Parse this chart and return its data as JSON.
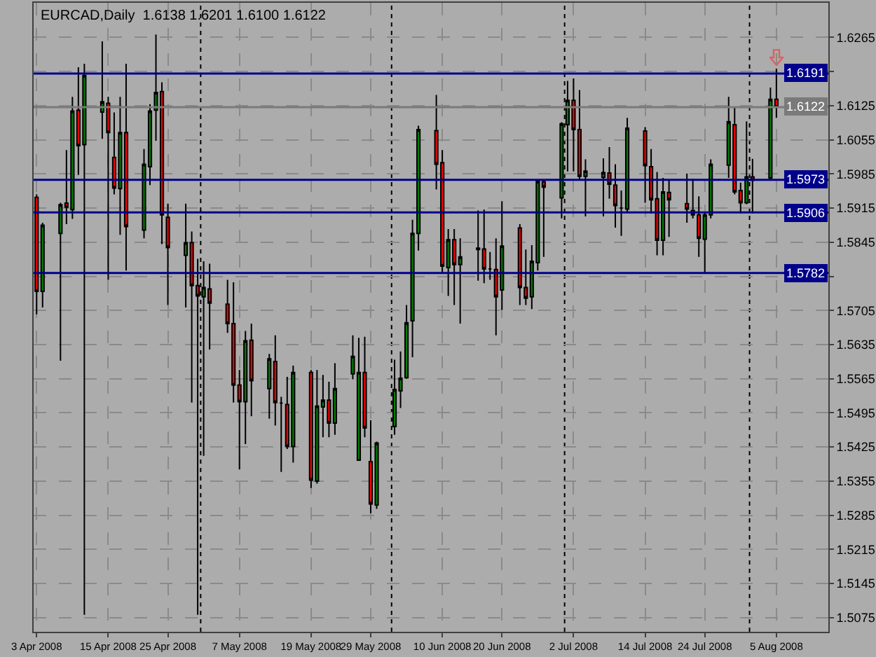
{
  "chart_data": {
    "type": "candlestick",
    "title": "EURCAD,Daily  1.6138 1.6201 1.6100 1.6122",
    "x": [
      "2008-04-03",
      "2008-04-04",
      "2008-04-07",
      "2008-04-08",
      "2008-04-09",
      "2008-04-10",
      "2008-04-11",
      "2008-04-14",
      "2008-04-15",
      "2008-04-16",
      "2008-04-17",
      "2008-04-18",
      "2008-04-21",
      "2008-04-22",
      "2008-04-23",
      "2008-04-24",
      "2008-04-25",
      "2008-04-28",
      "2008-04-29",
      "2008-04-30",
      "2008-05-01",
      "2008-05-02",
      "2008-05-05",
      "2008-05-06",
      "2008-05-07",
      "2008-05-08",
      "2008-05-09",
      "2008-05-12",
      "2008-05-13",
      "2008-05-14",
      "2008-05-15",
      "2008-05-16",
      "2008-05-19",
      "2008-05-20",
      "2008-05-21",
      "2008-05-22",
      "2008-05-23",
      "2008-05-26",
      "2008-05-27",
      "2008-05-28",
      "2008-05-29",
      "2008-05-30",
      "2008-06-02",
      "2008-06-03",
      "2008-06-04",
      "2008-06-05",
      "2008-06-06",
      "2008-06-09",
      "2008-06-10",
      "2008-06-11",
      "2008-06-12",
      "2008-06-13",
      "2008-06-16",
      "2008-06-17",
      "2008-06-18",
      "2008-06-19",
      "2008-06-20",
      "2008-06-23",
      "2008-06-24",
      "2008-06-25",
      "2008-06-26",
      "2008-06-27",
      "2008-06-30",
      "2008-07-01",
      "2008-07-02",
      "2008-07-03",
      "2008-07-04",
      "2008-07-07",
      "2008-07-08",
      "2008-07-09",
      "2008-07-10",
      "2008-07-11",
      "2008-07-14",
      "2008-07-15",
      "2008-07-16",
      "2008-07-17",
      "2008-07-18",
      "2008-07-21",
      "2008-07-22",
      "2008-07-23",
      "2008-07-24",
      "2008-07-25",
      "2008-07-28",
      "2008-07-29",
      "2008-07-30",
      "2008-07-31",
      "2008-08-01",
      "2008-08-04",
      "2008-08-05"
    ],
    "ohlc": [
      [
        1.5937,
        1.5943,
        1.5697,
        1.5744
      ],
      [
        1.5744,
        1.5885,
        1.5711,
        1.588
      ],
      [
        1.5863,
        1.5926,
        1.5602,
        1.5922
      ],
      [
        1.5925,
        1.6034,
        1.5882,
        1.5917
      ],
      [
        1.5912,
        1.6143,
        1.5893,
        1.6114
      ],
      [
        1.6116,
        1.6204,
        1.5983,
        1.6043
      ],
      [
        1.6045,
        1.6211,
        1.5081,
        1.6187
      ],
      [
        1.6112,
        1.6257,
        1.6057,
        1.6133
      ],
      [
        1.613,
        1.6143,
        1.5768,
        1.607
      ],
      [
        1.6019,
        1.6111,
        1.5943,
        1.5956
      ],
      [
        1.5955,
        1.6143,
        1.586,
        1.607
      ],
      [
        1.607,
        1.6211,
        1.5787,
        1.5877
      ],
      [
        1.587,
        1.6036,
        1.5853,
        1.6005
      ],
      [
        1.6,
        1.6128,
        1.5962,
        1.6114
      ],
      [
        1.6116,
        1.6271,
        1.6053,
        1.6152
      ],
      [
        1.6154,
        1.6173,
        1.5841,
        1.5901
      ],
      [
        1.5896,
        1.5924,
        1.5716,
        1.5834
      ],
      [
        1.5818,
        1.5924,
        1.5711,
        1.5844
      ],
      [
        1.5844,
        1.5867,
        1.5516,
        1.5756
      ],
      [
        1.5756,
        1.5811,
        1.5081,
        1.5735
      ],
      [
        1.5733,
        1.5806,
        1.5407,
        1.5752
      ],
      [
        1.5749,
        1.5801,
        1.5625,
        1.572
      ],
      [
        1.5718,
        1.5768,
        1.5659,
        1.5678
      ],
      [
        1.5678,
        1.5763,
        1.5516,
        1.5552
      ],
      [
        1.5552,
        1.5583,
        1.5379,
        1.5518
      ],
      [
        1.5518,
        1.5663,
        1.5431,
        1.5643
      ],
      [
        1.5644,
        1.5678,
        1.5488,
        1.5561
      ],
      [
        1.5545,
        1.5616,
        1.5483,
        1.5606
      ],
      [
        1.56,
        1.5654,
        1.5469,
        1.5516
      ],
      [
        1.5515,
        1.5528,
        1.5374,
        1.5515
      ],
      [
        1.5512,
        1.5569,
        1.5421,
        1.5426
      ],
      [
        1.5426,
        1.5592,
        1.5393,
        1.5578
      ],
      [
        1.5578,
        1.5583,
        1.5341,
        1.5357
      ],
      [
        1.5355,
        1.5583,
        1.535,
        1.5509
      ],
      [
        1.5507,
        1.5573,
        1.5445,
        1.5521
      ],
      [
        1.5521,
        1.5559,
        1.5445,
        1.5474
      ],
      [
        1.5474,
        1.5597,
        1.545,
        1.5545
      ],
      [
        1.5575,
        1.5654,
        1.5564,
        1.5611
      ],
      [
        1.5398,
        1.5649,
        1.5398,
        1.5578
      ],
      [
        1.5578,
        1.5651,
        1.5445,
        1.5464
      ],
      [
        1.5395,
        1.548,
        1.5289,
        1.5308
      ],
      [
        1.5306,
        1.5436,
        1.5298,
        1.5433
      ],
      [
        1.5467,
        1.5604,
        1.545,
        1.5543
      ],
      [
        1.554,
        1.5621,
        1.5505,
        1.5566
      ],
      [
        1.5567,
        1.5716,
        1.5565,
        1.568
      ],
      [
        1.5684,
        1.5891,
        1.5609,
        1.5863
      ],
      [
        1.5863,
        1.6084,
        1.5828,
        1.6076
      ],
      [
        1.6074,
        1.6147,
        1.5953,
        1.6005
      ],
      [
        1.6008,
        1.6034,
        1.5782,
        1.5796
      ],
      [
        1.5793,
        1.5872,
        1.5735,
        1.585
      ],
      [
        1.585,
        1.5872,
        1.5716,
        1.5799
      ],
      [
        1.5799,
        1.5853,
        1.5678,
        1.5815
      ],
      [
        1.583,
        1.591,
        1.5766,
        1.5833
      ],
      [
        1.5831,
        1.5912,
        1.5761,
        1.579
      ],
      [
        1.579,
        1.5825,
        1.5768,
        1.579
      ],
      [
        1.5789,
        1.5853,
        1.5654,
        1.5733
      ],
      [
        1.5747,
        1.5929,
        1.5706,
        1.5837
      ],
      [
        1.5874,
        1.5882,
        1.5716,
        1.5752
      ],
      [
        1.5752,
        1.583,
        1.5716,
        1.573
      ],
      [
        1.5733,
        1.5839,
        1.5708,
        1.5806
      ],
      [
        1.5803,
        1.5972,
        1.5787,
        1.597
      ],
      [
        1.5969,
        1.5974,
        1.5815,
        1.5958
      ],
      [
        1.5936,
        1.6091,
        1.5894,
        1.6088
      ],
      [
        1.6086,
        1.6176,
        1.599,
        1.6136
      ],
      [
        1.6136,
        1.6181,
        1.599,
        1.6076
      ],
      [
        1.6076,
        1.6157,
        1.5972,
        1.598
      ],
      [
        1.598,
        1.6015,
        1.5898,
        1.5991
      ],
      [
        1.5978,
        1.6017,
        1.5898,
        1.5988
      ],
      [
        1.5987,
        1.604,
        1.5934,
        1.5964
      ],
      [
        1.5962,
        1.6005,
        1.5875,
        1.592
      ],
      [
        1.5915,
        1.5951,
        1.5858,
        1.5915
      ],
      [
        1.5913,
        1.61,
        1.5907,
        1.6079
      ],
      [
        1.6073,
        1.6081,
        1.5926,
        1.6002
      ],
      [
        1.6,
        1.6036,
        1.5904,
        1.5932
      ],
      [
        1.5934,
        1.5989,
        1.5818,
        1.5849
      ],
      [
        1.5849,
        1.5977,
        1.5818,
        1.5948
      ],
      [
        1.5947,
        1.5974,
        1.5856,
        1.5932
      ],
      [
        1.5924,
        1.5986,
        1.5885,
        1.5913
      ],
      [
        1.591,
        1.5975,
        1.5894,
        1.5901
      ],
      [
        1.5901,
        1.5939,
        1.5815,
        1.5853
      ],
      [
        1.5851,
        1.5905,
        1.578,
        1.5901
      ],
      [
        1.5901,
        1.6015,
        1.5894,
        1.6005
      ],
      [
        1.6003,
        1.6143,
        1.5977,
        1.6092
      ],
      [
        1.6086,
        1.6122,
        1.5943,
        1.5948
      ],
      [
        1.5951,
        1.5967,
        1.5904,
        1.5926
      ],
      [
        1.5926,
        1.6093,
        1.5923,
        1.5979
      ],
      [
        1.5979,
        1.6016,
        1.5904,
        1.5972
      ],
      [
        1.5977,
        1.6162,
        1.5972,
        1.6138
      ],
      [
        1.6138,
        1.6201,
        1.61,
        1.6122
      ]
    ],
    "xlim": [
      "2008-04-02T12:00",
      "2008-08-13T17:00"
    ],
    "xticks": [
      {
        "value": "2008-04-03",
        "label": "3 Apr 2008"
      },
      {
        "value": "2008-04-15",
        "label": "15 Apr 2008"
      },
      {
        "value": "2008-04-25",
        "label": "25 Apr 2008"
      },
      {
        "value": "2008-05-07",
        "label": "7 May 2008"
      },
      {
        "value": "2008-05-19",
        "label": "19 May 2008"
      },
      {
        "value": "2008-05-29",
        "label": "29 May 2008"
      },
      {
        "value": "2008-06-10",
        "label": "10 Jun 2008"
      },
      {
        "value": "2008-06-20",
        "label": "20 Jun 2008"
      },
      {
        "value": "2008-07-02",
        "label": "2 Jul 2008"
      },
      {
        "value": "2008-07-14",
        "label": "14 Jul 2008"
      },
      {
        "value": "2008-07-24",
        "label": "24 Jul 2008"
      },
      {
        "value": "2008-08-05",
        "label": "5 Aug 2008"
      }
    ],
    "ylim": [
      1.5046,
      1.6336
    ],
    "yticks": [
      1.5075,
      1.5145,
      1.5215,
      1.5285,
      1.5355,
      1.5425,
      1.5495,
      1.5565,
      1.5635,
      1.5705,
      {
        "value": 1.5775,
        "label": null
      },
      1.5845,
      1.5915,
      1.5985,
      1.6055,
      1.6125,
      {
        "value": 1.6195,
        "label": null
      },
      1.6265
    ],
    "ref_lines": [
      {
        "axis": "y",
        "value": 1.6191,
        "label": "1.6191",
        "color": "#00008b",
        "line_style": "solid"
      },
      {
        "axis": "y",
        "value": 1.6122,
        "label": "1.6122",
        "color": "#7a7a7a",
        "line_style": "solid"
      },
      {
        "axis": "y",
        "value": 1.5973,
        "label": "1.5973",
        "color": "#00008b",
        "line_style": "solid"
      },
      {
        "axis": "y",
        "value": 1.5906,
        "label": "1.5906",
        "color": "#00008b",
        "line_style": "solid"
      },
      {
        "axis": "y",
        "value": 1.5782,
        "label": "1.5782",
        "color": "#00008b",
        "line_style": "solid"
      },
      {
        "axis": "x",
        "value": "2008-04-30T12:00",
        "color": "#000000",
        "line_style": "dotted"
      },
      {
        "axis": "x",
        "value": "2008-06-01T12:00",
        "color": "#000000",
        "line_style": "dotted"
      },
      {
        "axis": "x",
        "value": "2008-06-30T12:00",
        "color": "#000000",
        "line_style": "dotted"
      },
      {
        "axis": "x",
        "value": "2008-07-31T12:00",
        "color": "#000000",
        "line_style": "dotted"
      }
    ],
    "grid": true,
    "legend": false
  }
}
